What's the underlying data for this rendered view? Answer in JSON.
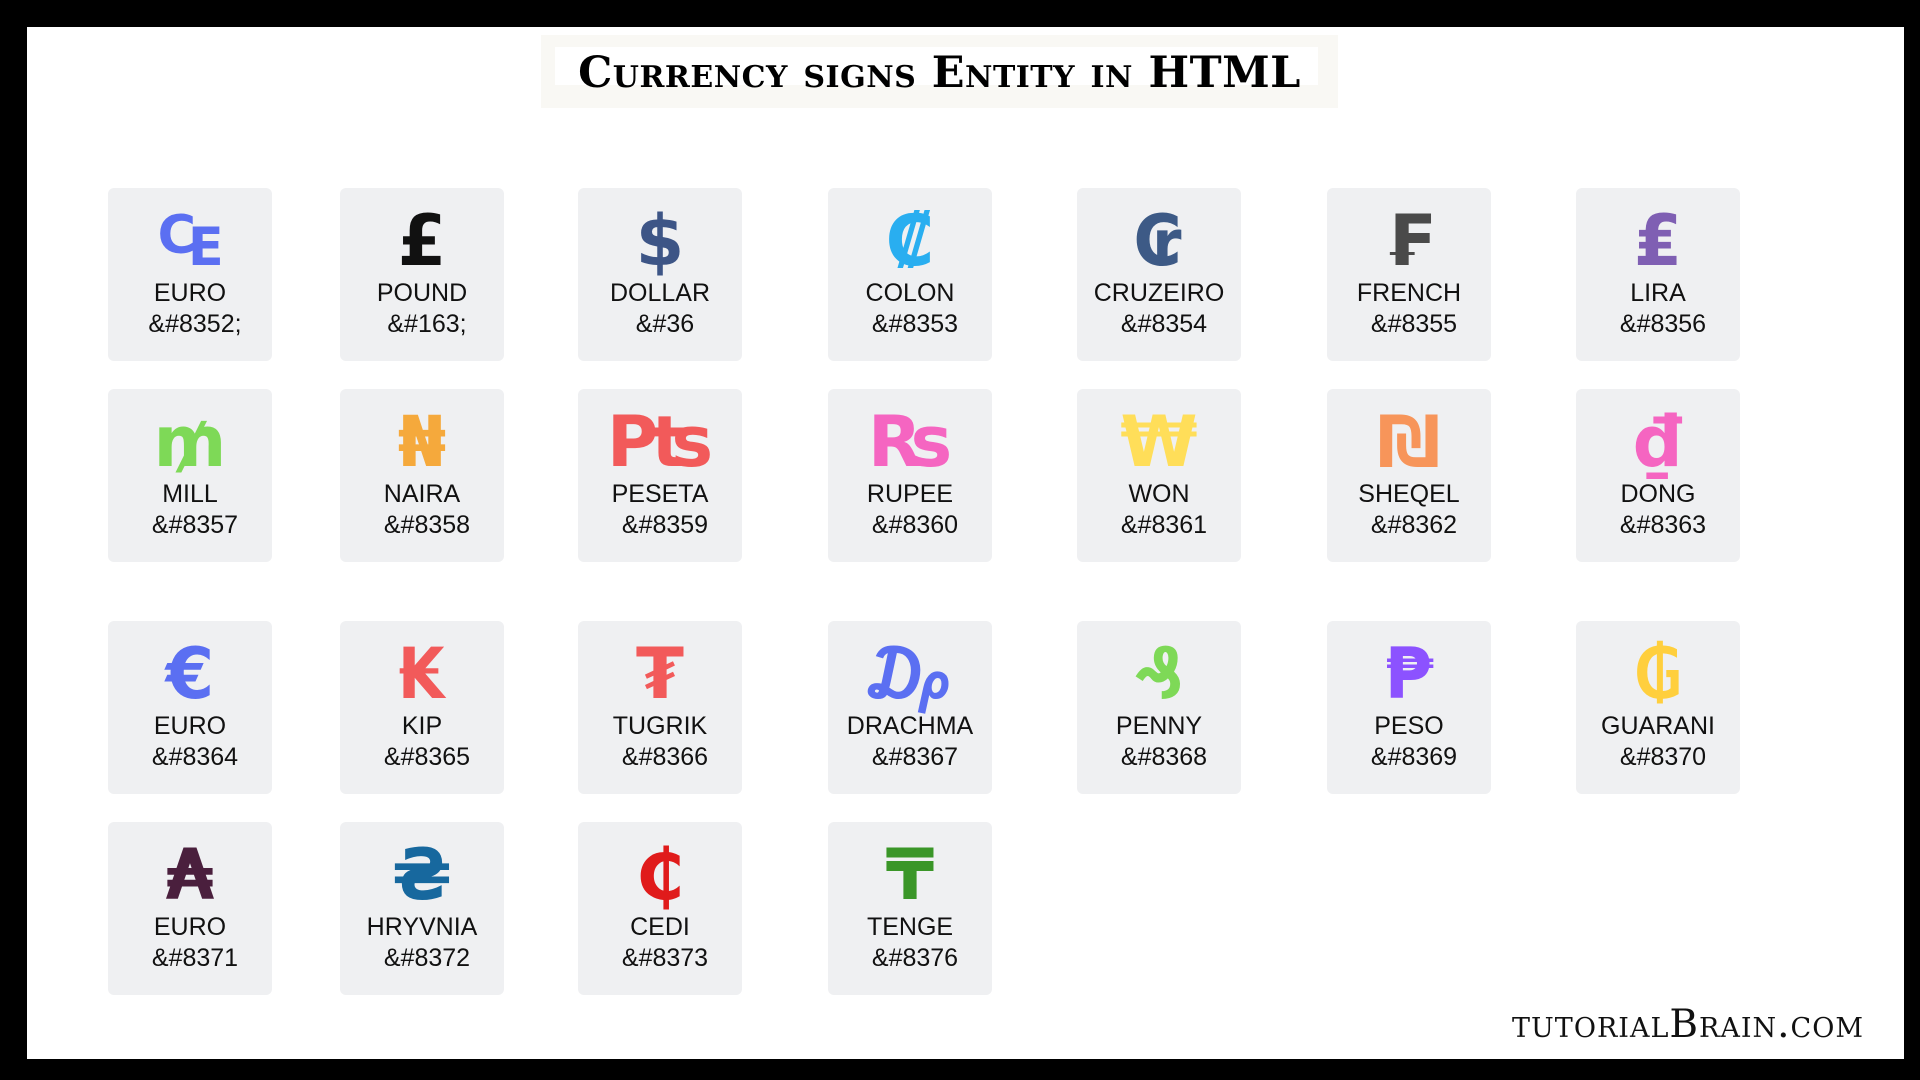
{
  "title": "Currency signs Entity in HTML",
  "brand": "tutorialBrain.com",
  "tiles": [
    {
      "symbol": "₠",
      "label": "EURO",
      "code": "&#8352;",
      "color": "#5b6ff2"
    },
    {
      "symbol": "£",
      "label": "POUND",
      "code": "&#163;",
      "color": "#111111"
    },
    {
      "symbol": "$",
      "label": "DOLLAR",
      "code": "&#36",
      "color": "#3d5586"
    },
    {
      "symbol": "₡",
      "label": "COLON",
      "code": "&#8353",
      "color": "#29aef0"
    },
    {
      "symbol": "₢",
      "label": "CRUZEIRO",
      "code": "&#8354",
      "color": "#3d5a86"
    },
    {
      "symbol": "₣",
      "label": "FRENCH",
      "code": "&#8355",
      "color": "#4a4a4a"
    },
    {
      "symbol": "₤",
      "label": "LIRA",
      "code": "&#8356",
      "color": "#7f5fb3"
    },
    {
      "symbol": "₥",
      "label": "MILL",
      "code": "&#8357",
      "color": "#7ed957"
    },
    {
      "symbol": "₦",
      "label": "NAIRA",
      "code": "&#8358",
      "color": "#f5a93c"
    },
    {
      "symbol": "₧",
      "label": "PESETA",
      "code": "&#8359",
      "color": "#f25a5a"
    },
    {
      "symbol": "₨",
      "label": "RUPEE",
      "code": "&#8360",
      "color": "#f565c1"
    },
    {
      "symbol": "₩",
      "label": "WON",
      "code": "&#8361",
      "color": "#ffde59"
    },
    {
      "symbol": "₪",
      "label": "SHEQEL",
      "code": "&#8362",
      "color": "#f7955a"
    },
    {
      "symbol": "₫",
      "label": "DONG",
      "code": "&#8363",
      "color": "#f565c1"
    },
    {
      "symbol": "€",
      "label": "EURO",
      "code": "&#8364",
      "color": "#5b6ff2"
    },
    {
      "symbol": "₭",
      "label": "KIP",
      "code": "&#8365",
      "color": "#f25a5a"
    },
    {
      "symbol": "₮",
      "label": "TUGRIK",
      "code": "&#8366",
      "color": "#f25a5a"
    },
    {
      "symbol": "₯",
      "label": "DRACHMA",
      "code": "&#8367",
      "color": "#5b6ff2"
    },
    {
      "symbol": "₰",
      "label": "PENNY",
      "code": "&#8368",
      "color": "#7ed957"
    },
    {
      "symbol": "₱",
      "label": "PESO",
      "code": "&#8369",
      "color": "#8c52ff"
    },
    {
      "symbol": "₲",
      "label": "GUARANI",
      "code": "&#8370",
      "color": "#ffcf3d"
    },
    {
      "symbol": "₳",
      "label": "EURO",
      "code": "&#8371",
      "color": "#4a1f3d"
    },
    {
      "symbol": "₴",
      "label": "HRYVNIA",
      "code": "&#8372",
      "color": "#17689e"
    },
    {
      "symbol": "₵",
      "label": "CEDI",
      "code": "&#8373",
      "color": "#e01b1b"
    },
    {
      "symbol": "₸",
      "label": "TENGE",
      "code": "&#8376",
      "color": "#3a9628"
    }
  ]
}
